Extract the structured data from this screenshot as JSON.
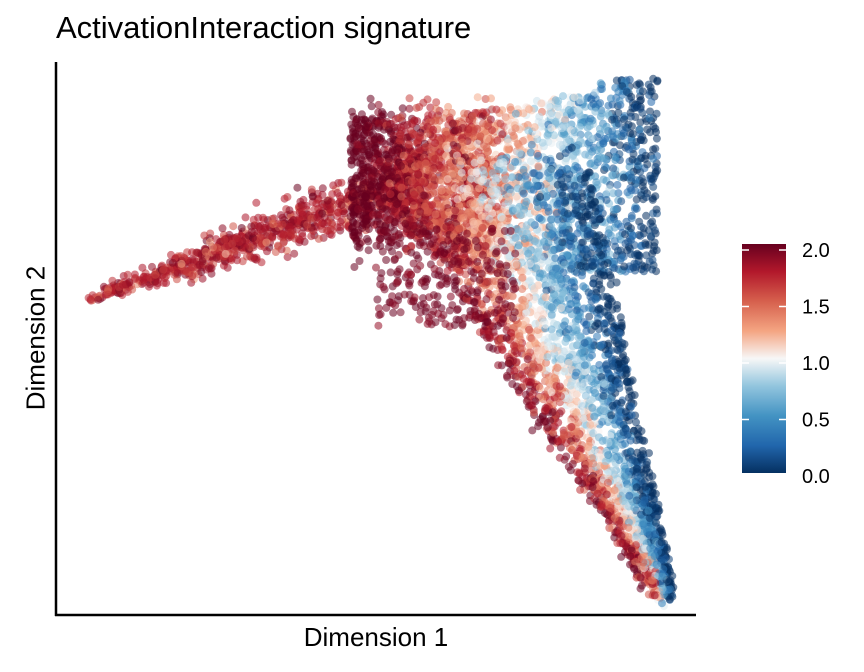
{
  "chart_data": {
    "type": "scatter",
    "title": "ActivationInteraction signature",
    "xlabel": "Dimension 1",
    "ylabel": "Dimension 2",
    "x_ticks": [],
    "y_ticks": [],
    "grid": false,
    "colorbar": {
      "range": [
        0.0,
        2.0
      ],
      "ticks": [
        "0.0",
        "0.5",
        "1.0",
        "1.5",
        "2.0"
      ],
      "palette": [
        "#053061",
        "#2166ac",
        "#4393c3",
        "#92c5de",
        "#f7f7f7",
        "#f4a582",
        "#d6604d",
        "#b2182b",
        "#67001f"
      ],
      "position": "right"
    },
    "points_shape": {
      "note_free": true,
      "arms": [
        {
          "from": [
            0.05,
            0.57
          ],
          "to": [
            0.57,
            0.93
          ]
        },
        {
          "from": [
            0.57,
            0.93
          ],
          "to": [
            0.95,
            0.02
          ]
        },
        {
          "from": [
            0.95,
            0.02
          ],
          "to": [
            0.87,
            0.98
          ]
        }
      ]
    }
  }
}
